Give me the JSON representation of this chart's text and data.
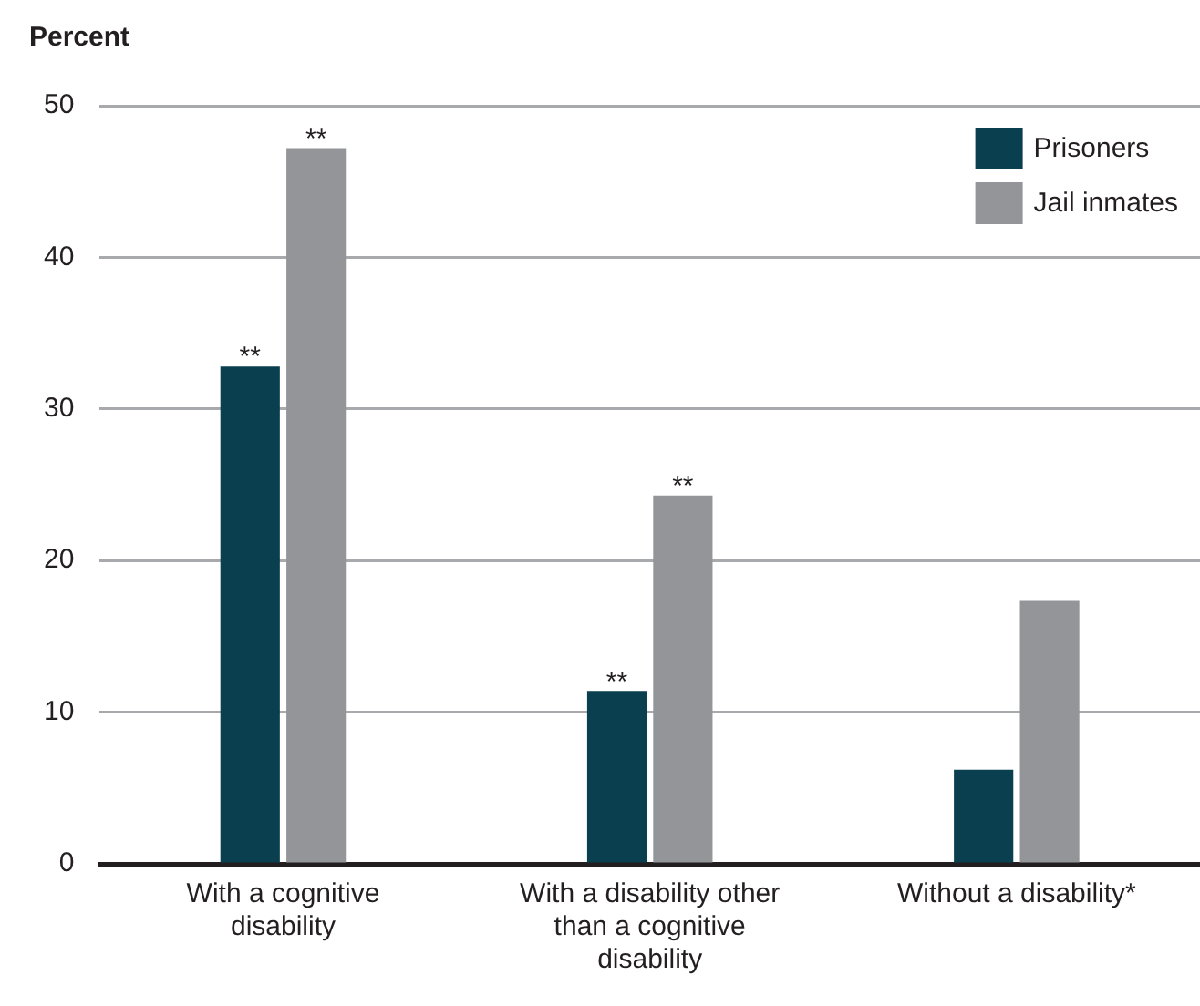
{
  "chart_data": {
    "type": "bar",
    "ylabel": "Percent",
    "categories": [
      "With a cognitive disability",
      "With a disability other than a cognitive disability",
      "Without a disability*"
    ],
    "series": [
      {
        "name": "Prisoners",
        "color": "#0a3f4f",
        "values": [
          32.8,
          11.4,
          6.2
        ]
      },
      {
        "name": "Jail inmates",
        "color": "#939598",
        "values": [
          47.2,
          24.3,
          17.4
        ]
      }
    ],
    "ylim": [
      0,
      50
    ],
    "yticks": [
      0,
      10,
      20,
      30,
      40,
      50
    ],
    "grid": "y",
    "legend": "top right",
    "annotations": [
      {
        "text": "**",
        "x": "With a cognitive disability",
        "y": 32.8
      },
      {
        "text": "**",
        "x": "With a cognitive disability",
        "y": 47.2
      },
      {
        "text": "**",
        "x": "With a disability other than a cognitive disability",
        "y": 11.4
      },
      {
        "text": "**",
        "x": "With a disability other than a cognitive disability",
        "y": 24.3
      }
    ]
  }
}
